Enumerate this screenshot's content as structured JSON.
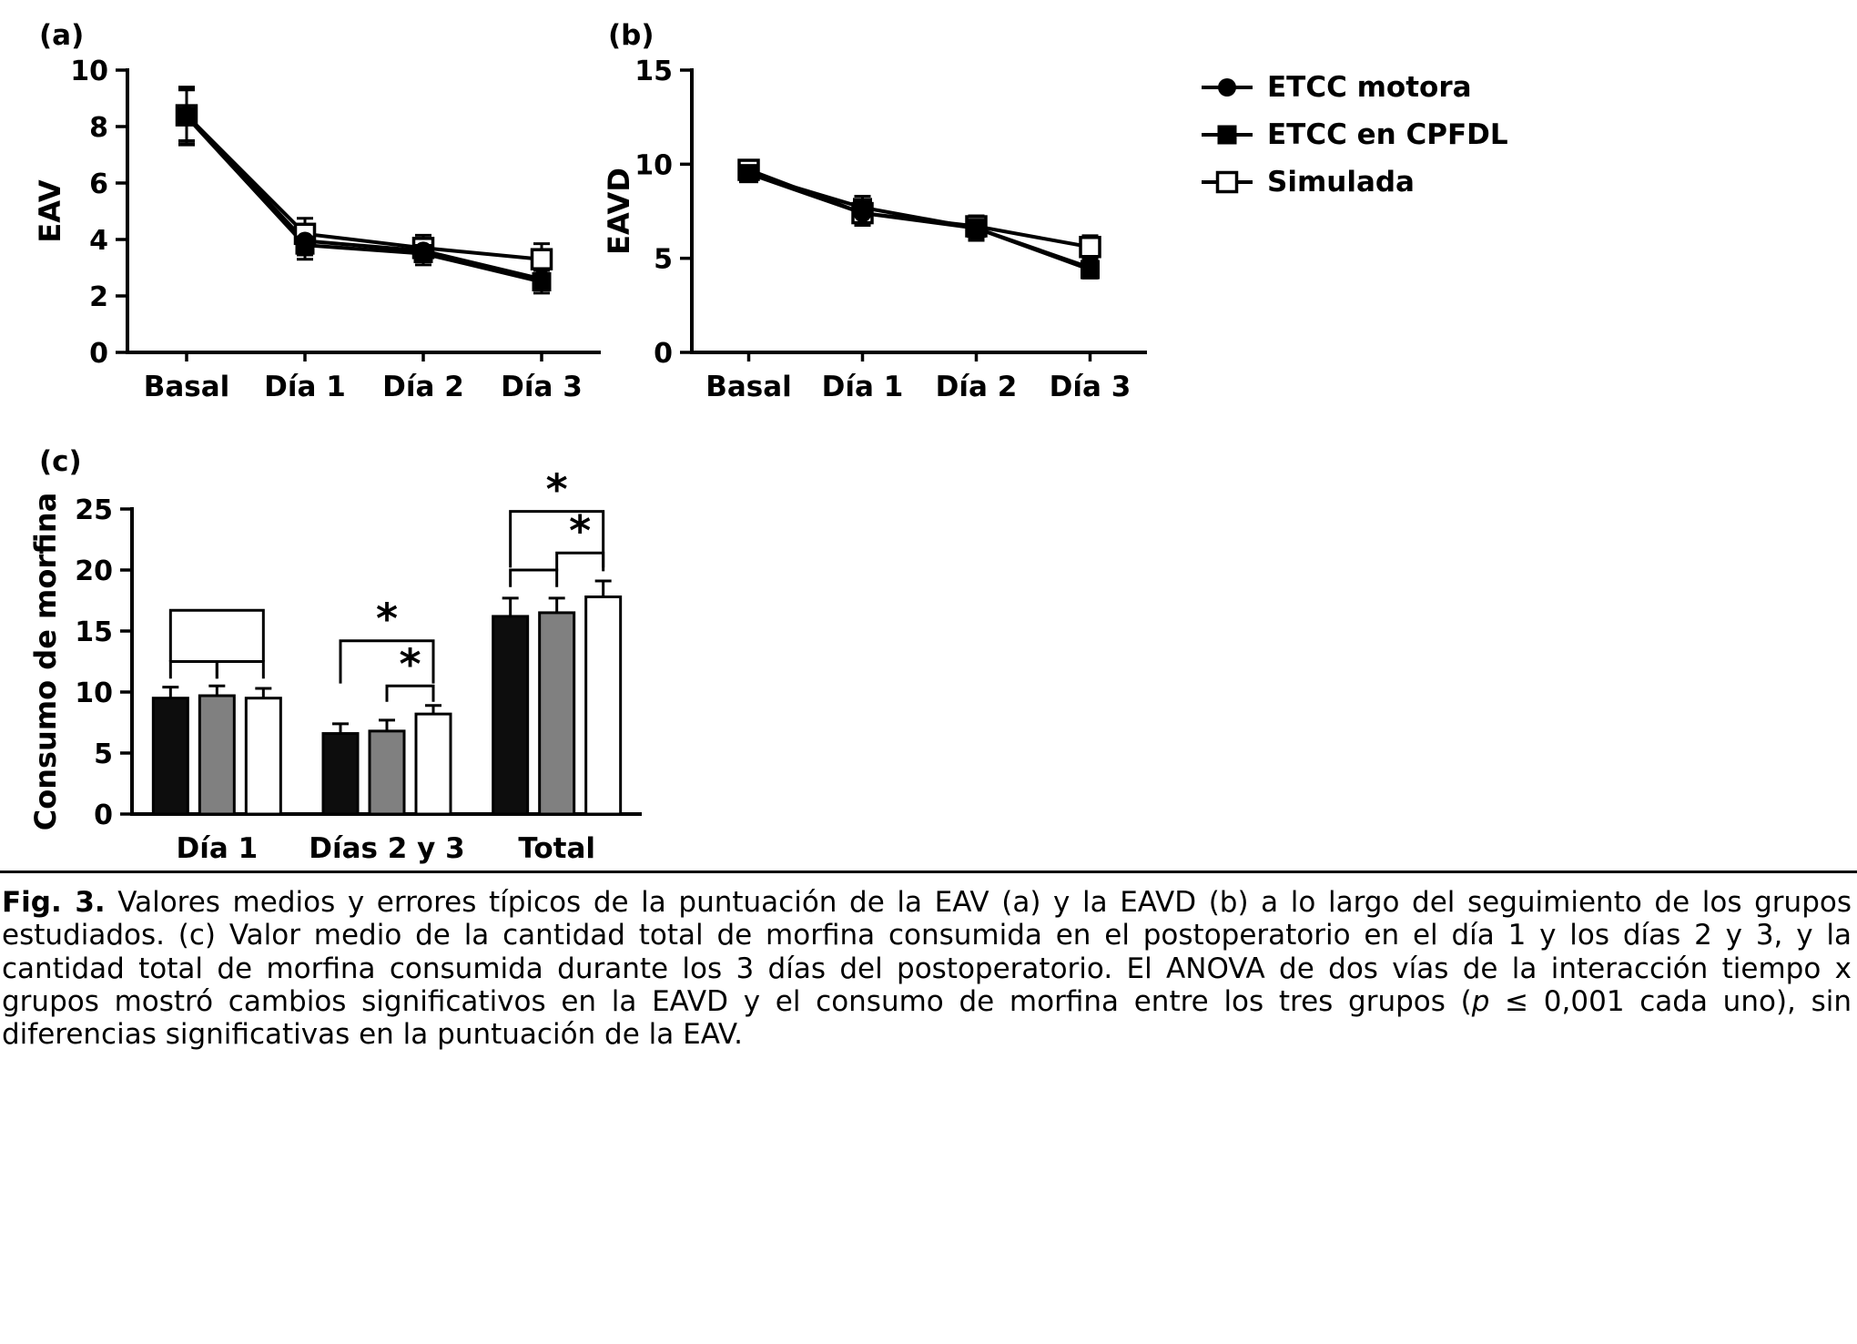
{
  "panels": {
    "a": {
      "label": "(a)"
    },
    "b": {
      "label": "(b)"
    },
    "c": {
      "label": "(c)"
    }
  },
  "legend": {
    "items": [
      {
        "label": "ETCC motora",
        "marker": "filled-circle"
      },
      {
        "label": "ETCC en CPFDL",
        "marker": "filled-square"
      },
      {
        "label": "Simulada",
        "marker": "open-square"
      }
    ]
  },
  "caption": {
    "label": "Fig. 3.",
    "body_1": " Valores medios y errores típicos de la puntuación de la EAV (a) y la EAVD (b) a lo largo del seguimiento de los grupos estudiados. (c) Valor medio de la cantidad total de morfina consumida en el postoperatorio en el día 1 y los días 2 y 3, y la cantidad total de morfina consumida durante los 3 días del postoperatorio. El ANOVA de dos vías de la interacción tiempo x grupos mostró cambios significativos en la EAVD y el consumo de morfina entre los tres grupos (",
    "p_symbol": "p",
    "body_2": " ≤ 0,001 cada uno), sin diferencias significativas en la puntuación de la EAV."
  },
  "chart_data": [
    {
      "id": "eav",
      "type": "line",
      "title": "",
      "xlabel": "",
      "ylabel": "EAV",
      "categories": [
        "Basal",
        "Día 1",
        "Día 2",
        "Día 3"
      ],
      "ylim": [
        0,
        10
      ],
      "yticks": [
        0,
        2,
        4,
        6,
        8,
        10
      ],
      "grid": false,
      "series": [
        {
          "name": "ETCC motora",
          "marker": "filled-circle",
          "values": [
            8.4,
            3.95,
            3.6,
            2.6
          ],
          "errors": [
            1.0,
            0.5,
            0.35,
            0.35
          ]
        },
        {
          "name": "ETCC en CPFDL",
          "marker": "filled-square",
          "values": [
            8.35,
            3.8,
            3.5,
            2.5
          ],
          "errors": [
            1.0,
            0.5,
            0.4,
            0.4
          ]
        },
        {
          "name": "Simulada",
          "marker": "open-square",
          "values": [
            8.4,
            4.2,
            3.7,
            3.3
          ],
          "errors": [
            0.9,
            0.55,
            0.45,
            0.55
          ]
        }
      ]
    },
    {
      "id": "eavd",
      "type": "line",
      "title": "",
      "xlabel": "",
      "ylabel": "EAVD",
      "categories": [
        "Basal",
        "Día 1",
        "Día 2",
        "Día 3"
      ],
      "ylim": [
        0,
        15
      ],
      "yticks": [
        0,
        5,
        10,
        15
      ],
      "grid": false,
      "legend_position": "outside-right",
      "series": [
        {
          "name": "ETCC motora",
          "marker": "filled-circle",
          "values": [
            9.5,
            7.4,
            6.6,
            4.5
          ],
          "errors": [
            0.35,
            0.6,
            0.55,
            0.45
          ]
        },
        {
          "name": "ETCC en CPFDL",
          "marker": "filled-square",
          "values": [
            9.5,
            7.7,
            6.6,
            4.4
          ],
          "errors": [
            0.35,
            0.6,
            0.65,
            0.45
          ]
        },
        {
          "name": "Simulada",
          "marker": "open-square",
          "values": [
            9.7,
            7.4,
            6.7,
            5.6
          ],
          "errors": [
            0.35,
            0.65,
            0.55,
            0.6
          ]
        }
      ]
    },
    {
      "id": "morfina",
      "type": "bar",
      "title": "",
      "xlabel": "",
      "ylabel": "Consumo de morfina",
      "categories": [
        "Día 1",
        "Días 2 y 3",
        "Total"
      ],
      "ylim": [
        0,
        25
      ],
      "yticks": [
        0,
        5,
        10,
        15,
        20,
        25
      ],
      "grid": false,
      "series": [
        {
          "name": "ETCC motora",
          "color": "#0d0d0d",
          "values": [
            9.5,
            6.6,
            16.2
          ],
          "errors": [
            0.9,
            0.8,
            1.5
          ]
        },
        {
          "name": "ETCC en CPFDL",
          "color": "#808080",
          "values": [
            9.7,
            6.8,
            16.5
          ],
          "errors": [
            0.8,
            0.9,
            1.2
          ]
        },
        {
          "name": "Simulada",
          "color": "#ffffff",
          "values": [
            9.5,
            8.2,
            17.8
          ],
          "errors": [
            0.8,
            0.7,
            1.3
          ]
        }
      ],
      "brackets": [
        {
          "group": 0,
          "from": 0,
          "to": 2,
          "y": 16.7,
          "drop": 4.2,
          "label": ""
        },
        {
          "group": 0,
          "from": 0,
          "to": 1,
          "y": 12.5,
          "drop": 1.4,
          "label": ""
        },
        {
          "group": 0,
          "from": 1,
          "to": 2,
          "y": 12.5,
          "drop": 1.4,
          "label": ""
        },
        {
          "group": 1,
          "from": 0,
          "to": 2,
          "y": 14.2,
          "drop": 3.5,
          "label": "*"
        },
        {
          "group": 1,
          "from": 1,
          "to": 2,
          "y": 10.5,
          "drop": 1.3,
          "label": "*"
        },
        {
          "group": 2,
          "from": 0,
          "to": 2,
          "y": 24.8,
          "drop": 4.6,
          "label": "*"
        },
        {
          "group": 2,
          "from": 0,
          "to": 1,
          "y": 20.0,
          "drop": 1.4,
          "label": ""
        },
        {
          "group": 2,
          "from": 1,
          "to": 2,
          "y": 21.4,
          "drop": 1.5,
          "label": "*"
        }
      ]
    }
  ],
  "colors": {
    "line": "#000000",
    "bar_black": "#0d0d0d",
    "bar_gray": "#808080",
    "bar_white": "#ffffff"
  }
}
